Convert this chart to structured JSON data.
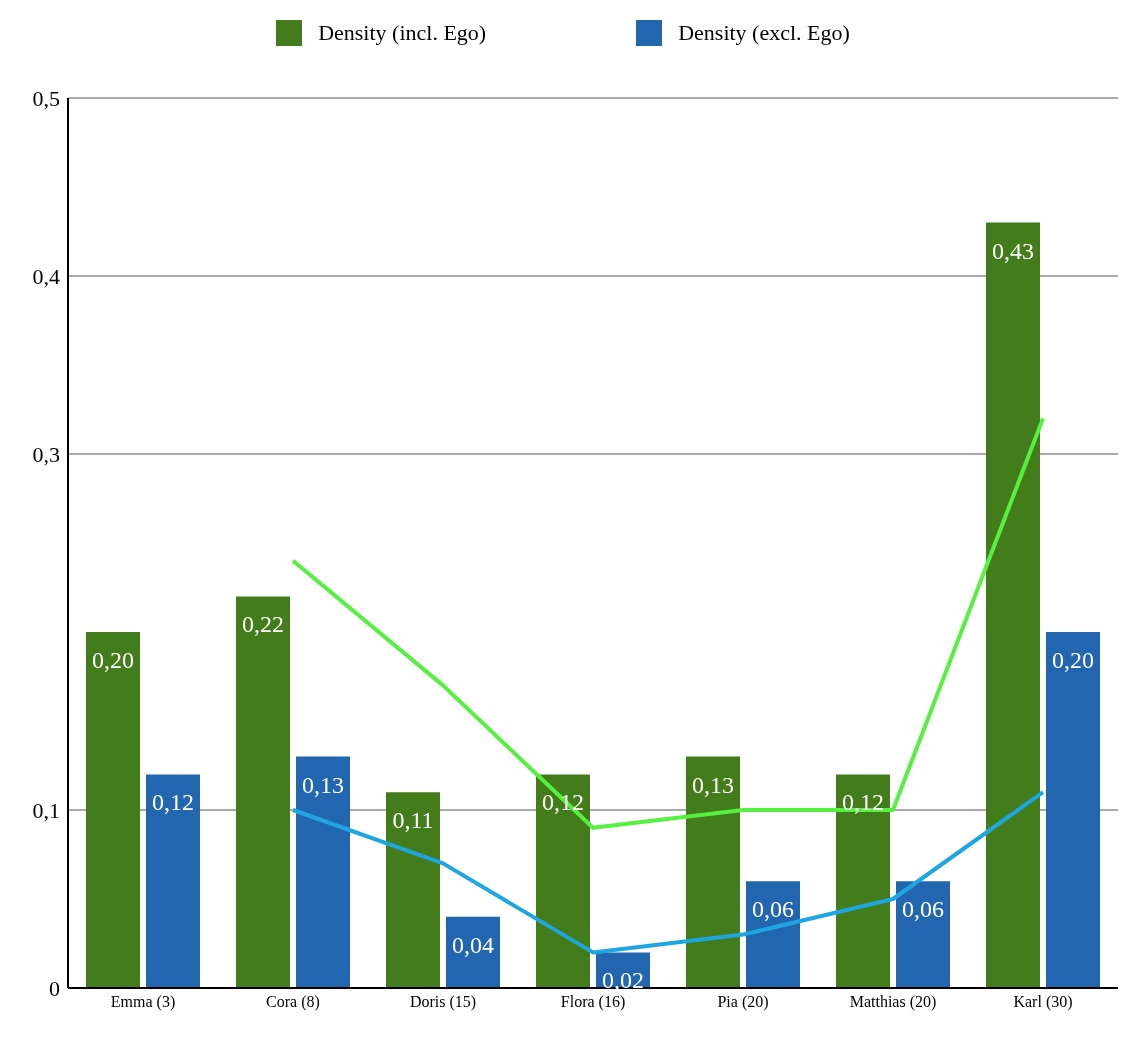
{
  "chart_data": {
    "type": "bar",
    "categories": [
      "Emma (3)",
      "Cora (8)",
      "Doris (15)",
      "Flora (16)",
      "Pia (20)",
      "Matthias (20)",
      "Karl (30)"
    ],
    "series": [
      {
        "name": "Density  (incl. Ego)",
        "color": "#437c1a",
        "values": [
          0.2,
          0.22,
          0.11,
          0.12,
          0.13,
          0.12,
          0.43
        ],
        "value_labels": [
          "0,20",
          "0,22",
          "0,11",
          "0,12",
          "0,13",
          "0,12",
          "0,43"
        ]
      },
      {
        "name": "Density  (excl. Ego)",
        "color": "#2266b0",
        "values": [
          0.12,
          0.13,
          0.04,
          0.02,
          0.06,
          0.06,
          0.2
        ],
        "value_labels": [
          "0,12",
          "0,13",
          "0,04",
          "0,02",
          "0,06",
          "0,06",
          "0,20"
        ]
      },
      {
        "type": "line",
        "color": "#55f040",
        "values": [
          null,
          0.24,
          0.17,
          0.09,
          0.1,
          0.1,
          0.32
        ]
      },
      {
        "type": "line",
        "color": "#1ea6e0",
        "values": [
          null,
          0.1,
          0.07,
          0.02,
          0.03,
          0.05,
          0.11
        ]
      }
    ],
    "ylim": [
      0,
      0.5
    ],
    "yticks": [
      {
        "value": 0,
        "label": "0"
      },
      {
        "value": 0.1,
        "label": "0,1"
      },
      {
        "value": 0.3,
        "label": "0,3"
      },
      {
        "value": 0.4,
        "label": "0,4"
      },
      {
        "value": 0.5,
        "label": "0,5"
      }
    ],
    "grid": "y",
    "legend": "top"
  }
}
